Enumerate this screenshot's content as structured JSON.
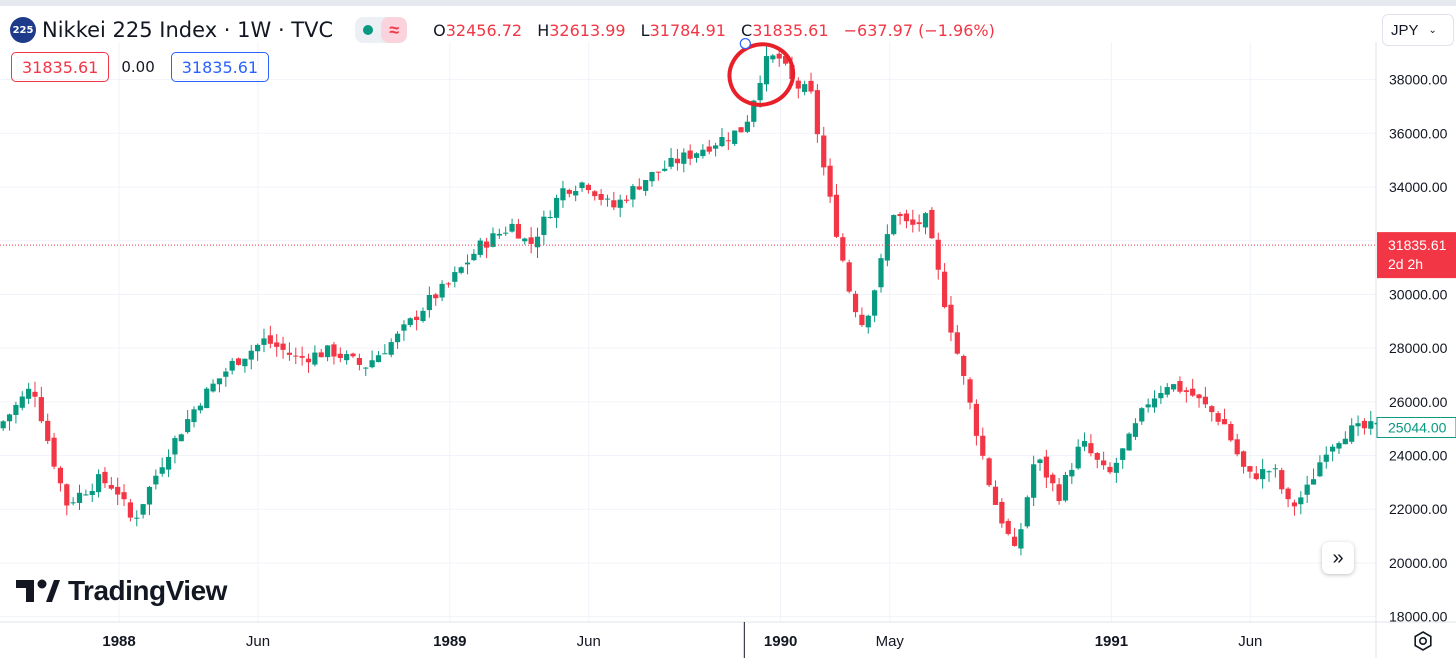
{
  "header": {
    "symbol_badge": "225",
    "title": "Nikkei 225 Index · 1W · TVC",
    "ohlc": {
      "o_label": "O",
      "o": "32456.72",
      "h_label": "H",
      "h": "32613.99",
      "l_label": "L",
      "l": "31784.91",
      "c_label": "C",
      "c": "31835.61",
      "change": "−637.97 (−1.96%)"
    },
    "market_icon": "market-open-dot-icon",
    "indicator_icon": "wave-icon"
  },
  "trade": {
    "sell_price": "31835.61",
    "spread": "0.00",
    "buy_price": "31835.61"
  },
  "currency": {
    "label": "JPY"
  },
  "branding": {
    "logo_text": "TradingView"
  },
  "colors": {
    "up": "#089981",
    "down": "#f23645",
    "grid": "#f0f3fa",
    "annotation": "#e8202a"
  },
  "chart_data": {
    "type": "candlestick",
    "title": "",
    "xlabel": "",
    "ylabel": "",
    "ylim": [
      17800,
      39400
    ],
    "y_ticks": [
      "18000.00",
      "20000.00",
      "22000.00",
      "24000.00",
      "26000.00",
      "28000.00",
      "30000.00",
      "32000.00",
      "34000.00",
      "36000.00",
      "38000.00"
    ],
    "x_ticks": [
      "1988",
      "Jun",
      "1989",
      "Jun",
      "1990",
      "May",
      "1991",
      "Jun"
    ],
    "x_tick_positions": [
      1988.0,
      1988.42,
      1989.0,
      1989.42,
      1990.0,
      1990.33,
      1991.0,
      1991.42
    ],
    "x_range": [
      1987.64,
      1991.8
    ],
    "price_line": {
      "value": 31835.61,
      "label": "31835.61",
      "countdown": "2d 2h"
    },
    "last_price": {
      "value": 25044.0,
      "label": "25044.00"
    },
    "series": [
      {
        "name": "",
        "points": [
          [
            1987.64,
            25000
          ],
          [
            1987.75,
            26600
          ],
          [
            1987.8,
            24300
          ],
          [
            1987.85,
            22200
          ],
          [
            1987.95,
            23100
          ],
          [
            1988.0,
            22800
          ],
          [
            1988.05,
            21500
          ],
          [
            1988.15,
            24000
          ],
          [
            1988.25,
            26000
          ],
          [
            1988.35,
            27400
          ],
          [
            1988.45,
            28300
          ],
          [
            1988.55,
            27600
          ],
          [
            1988.65,
            27900
          ],
          [
            1988.75,
            27300
          ],
          [
            1988.85,
            28400
          ],
          [
            1988.95,
            29800
          ],
          [
            1989.0,
            30300
          ],
          [
            1989.1,
            31800
          ],
          [
            1989.2,
            32600
          ],
          [
            1989.25,
            31800
          ],
          [
            1989.35,
            33900
          ],
          [
            1989.42,
            34200
          ],
          [
            1989.5,
            33200
          ],
          [
            1989.6,
            34300
          ],
          [
            1989.7,
            35000
          ],
          [
            1989.8,
            35600
          ],
          [
            1989.9,
            36200
          ],
          [
            1989.96,
            38600
          ],
          [
            1990.0,
            38900
          ],
          [
            1990.05,
            37800
          ],
          [
            1990.1,
            37500
          ],
          [
            1990.15,
            34000
          ],
          [
            1990.22,
            30000
          ],
          [
            1990.26,
            28800
          ],
          [
            1990.3,
            30500
          ],
          [
            1990.35,
            33100
          ],
          [
            1990.4,
            32500
          ],
          [
            1990.45,
            32800
          ],
          [
            1990.5,
            30000
          ],
          [
            1990.58,
            26000
          ],
          [
            1990.65,
            22500
          ],
          [
            1990.72,
            20300
          ],
          [
            1990.78,
            24000
          ],
          [
            1990.85,
            22500
          ],
          [
            1990.92,
            24500
          ],
          [
            1991.0,
            23200
          ],
          [
            1991.06,
            24500
          ],
          [
            1991.12,
            26000
          ],
          [
            1991.18,
            26700
          ],
          [
            1991.25,
            26300
          ],
          [
            1991.35,
            25200
          ],
          [
            1991.42,
            23200
          ],
          [
            1991.5,
            23500
          ],
          [
            1991.55,
            22000
          ],
          [
            1991.6,
            22700
          ],
          [
            1991.66,
            24300
          ],
          [
            1991.72,
            24900
          ],
          [
            1991.8,
            25044
          ]
        ]
      }
    ]
  }
}
